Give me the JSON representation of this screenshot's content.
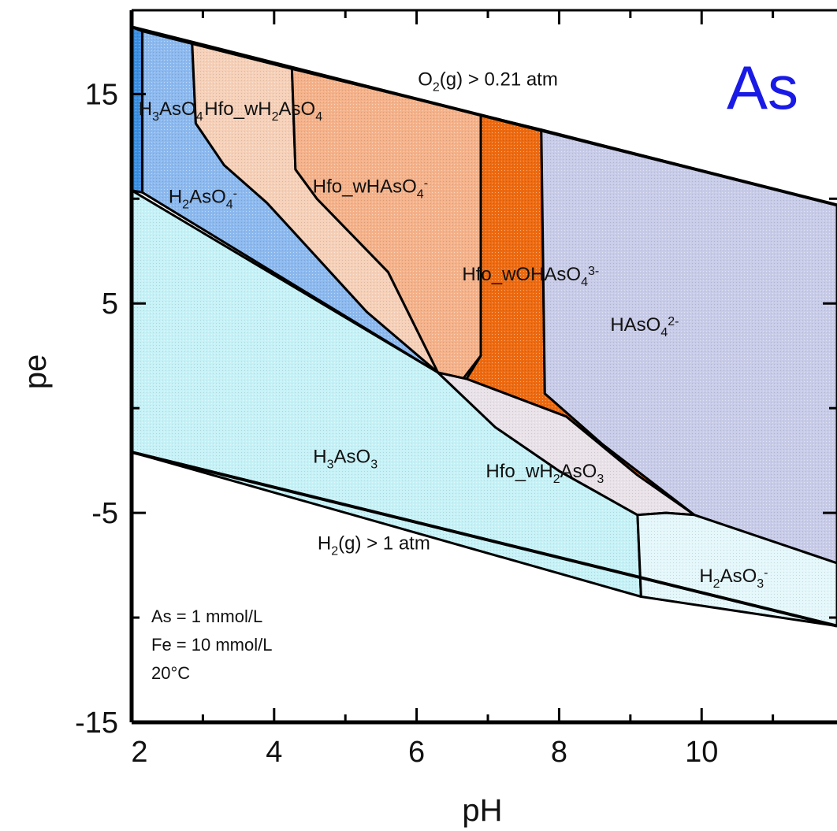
{
  "chart_data": {
    "type": "area",
    "title": "",
    "xlabel": "pH",
    "ylabel": "pe",
    "xlim": [
      2,
      11.9
    ],
    "ylim": [
      -15,
      19
    ],
    "x_ticks_major": [
      2,
      4,
      6,
      8,
      10
    ],
    "x_ticks_minor": [
      3,
      5,
      7,
      9,
      11
    ],
    "y_ticks_major": [
      15,
      5,
      -5,
      -15
    ],
    "y_ticks_minor": [
      10,
      0,
      -10
    ],
    "element_label": "As",
    "notes": [
      "As = 1 mmol/L",
      "Fe = 10 mmol/L",
      "20°C"
    ],
    "water_limits": [
      {
        "name": "O2(g) > 0.21 atm",
        "html": "O<tspan dy='7' font-size='16'>2</tspan><tspan dy='-7'>(g) &gt; 0.21 atm</tspan>",
        "points": [
          [
            2,
            18.2
          ],
          [
            11.9,
            9.7
          ]
        ]
      },
      {
        "name": "H2(g) > 1 atm",
        "html": "H<tspan dy='7' font-size='16'>2</tspan><tspan dy='-7'>(g) &gt; 1 atm</tspan>",
        "points": [
          [
            2,
            -2.1
          ],
          [
            11.9,
            -10.4
          ]
        ]
      }
    ],
    "series": [
      {
        "name": "H3AsO4",
        "color": "#3b8ede",
        "label_html": "H<tspan dy='7' font-size='16'>3</tspan><tspan dy='-7'>AsO</tspan><tspan dy='7' font-size='16'>4</tspan>",
        "label_at": [
          2.55,
          14.0
        ],
        "polygon": [
          [
            2,
            18.2
          ],
          [
            2.15,
            18.0
          ],
          [
            2.15,
            10.3
          ],
          [
            2,
            10.4
          ]
        ]
      },
      {
        "name": "H2AsO4-",
        "color": "#8cb9ef",
        "label_html": "H<tspan dy='7' font-size='16'>2</tspan><tspan dy='-7'>AsO</tspan><tspan dy='7' font-size='16'>4</tspan><tspan dy='-14' font-size='16'>-</tspan>",
        "label_at": [
          3.0,
          9.8
        ],
        "polygon": [
          [
            2.15,
            18.0
          ],
          [
            2.85,
            17.4
          ],
          [
            2.9,
            13.6
          ],
          [
            3.3,
            11.6
          ],
          [
            3.9,
            9.8
          ],
          [
            4.6,
            7.2
          ],
          [
            5.3,
            4.6
          ],
          [
            6.3,
            1.7
          ],
          [
            2.15,
            10.3
          ]
        ]
      },
      {
        "name": "Hfo_wH2AsO4",
        "color": "#f6d0b8",
        "label_html": "Hfo_wH<tspan dy='7' font-size='16'>2</tspan><tspan dy='-7'>AsO</tspan><tspan dy='7' font-size='16'>4</tspan>",
        "label_at": [
          3.85,
          14.0
        ],
        "polygon": [
          [
            2.85,
            17.4
          ],
          [
            4.25,
            16.2
          ],
          [
            4.3,
            11.4
          ],
          [
            4.6,
            10.0
          ],
          [
            5.6,
            6.5
          ],
          [
            6.3,
            1.7
          ],
          [
            5.3,
            4.6
          ],
          [
            4.6,
            7.2
          ],
          [
            3.9,
            9.8
          ],
          [
            3.3,
            11.6
          ],
          [
            2.9,
            13.6
          ]
        ]
      },
      {
        "name": "Hfo_wHAsO4-",
        "color": "#f5b28a",
        "label_html": "Hfo_wHAsO<tspan dy='7' font-size='16'>4</tspan><tspan dy='-14' font-size='16'>-</tspan>",
        "label_at": [
          5.35,
          10.3
        ],
        "polygon": [
          [
            4.25,
            16.2
          ],
          [
            6.9,
            14.0
          ],
          [
            6.9,
            2.5
          ],
          [
            6.65,
            1.4
          ],
          [
            6.3,
            1.7
          ],
          [
            5.6,
            6.5
          ],
          [
            4.6,
            10.0
          ],
          [
            4.3,
            11.4
          ]
        ]
      },
      {
        "name": "Hfo_wOHAsO4 3-",
        "color": "#ee6a10",
        "label_html": "Hfo_wOHAsO<tspan dy='7' font-size='16'>4</tspan><tspan dy='-14' font-size='16'>3-</tspan>",
        "label_at": [
          7.6,
          6.1
        ],
        "polygon": [
          [
            6.9,
            14.0
          ],
          [
            7.75,
            13.3
          ],
          [
            7.8,
            0.7
          ],
          [
            8.6,
            -1.7
          ],
          [
            9.9,
            -5.1
          ],
          [
            9.1,
            -3.2
          ],
          [
            8.1,
            -0.4
          ],
          [
            6.7,
            1.4
          ],
          [
            6.9,
            2.5
          ]
        ]
      },
      {
        "name": "HAsO4 2-",
        "color": "#c8cce8",
        "label_html": "HAsO<tspan dy='7' font-size='16'>4</tspan><tspan dy='-14' font-size='16'>2-</tspan>",
        "label_at": [
          9.2,
          3.7
        ],
        "polygon": [
          [
            7.75,
            13.3
          ],
          [
            11.9,
            9.7
          ],
          [
            11.9,
            -7.4
          ],
          [
            9.9,
            -5.1
          ],
          [
            8.6,
            -1.7
          ],
          [
            7.8,
            0.7
          ]
        ]
      },
      {
        "name": "H3AsO3",
        "color": "#c6f2f7",
        "label_html": "H<tspan dy='7' font-size='16'>3</tspan><tspan dy='-7'>AsO</tspan><tspan dy='7' font-size='16'>3</tspan>",
        "label_at": [
          5.0,
          -2.6
        ],
        "polygon": [
          [
            2,
            10.4
          ],
          [
            6.3,
            1.7
          ],
          [
            7.1,
            -0.9
          ],
          [
            8.0,
            -3.0
          ],
          [
            9.1,
            -5.1
          ],
          [
            9.15,
            -9.0
          ],
          [
            2,
            -2.1
          ]
        ]
      },
      {
        "name": "Hfo_wH2AsO3",
        "color": "#e9e2e8",
        "label_html": "Hfo_wH<tspan dy='7' font-size='16'>2</tspan><tspan dy='-7'>AsO</tspan><tspan dy='7' font-size='16'>3</tspan>",
        "label_at": [
          7.8,
          -3.3
        ],
        "polygon": [
          [
            6.3,
            1.7
          ],
          [
            6.7,
            1.4
          ],
          [
            8.1,
            -0.4
          ],
          [
            9.1,
            -3.2
          ],
          [
            9.9,
            -5.1
          ],
          [
            9.5,
            -5.0
          ],
          [
            9.1,
            -5.1
          ],
          [
            8.0,
            -3.0
          ],
          [
            7.1,
            -0.9
          ]
        ]
      },
      {
        "name": "H2AsO3-",
        "color": "#e4f7fa",
        "label_html": "H<tspan dy='7' font-size='16'>2</tspan><tspan dy='-7'>AsO</tspan><tspan dy='7' font-size='16'>3</tspan><tspan dy='-14' font-size='16'>-</tspan>",
        "label_at": [
          10.45,
          -8.3
        ],
        "polygon": [
          [
            9.1,
            -5.1
          ],
          [
            9.5,
            -5.0
          ],
          [
            9.9,
            -5.1
          ],
          [
            11.9,
            -7.4
          ],
          [
            11.9,
            -10.4
          ],
          [
            9.15,
            -9.0
          ]
        ]
      }
    ]
  }
}
